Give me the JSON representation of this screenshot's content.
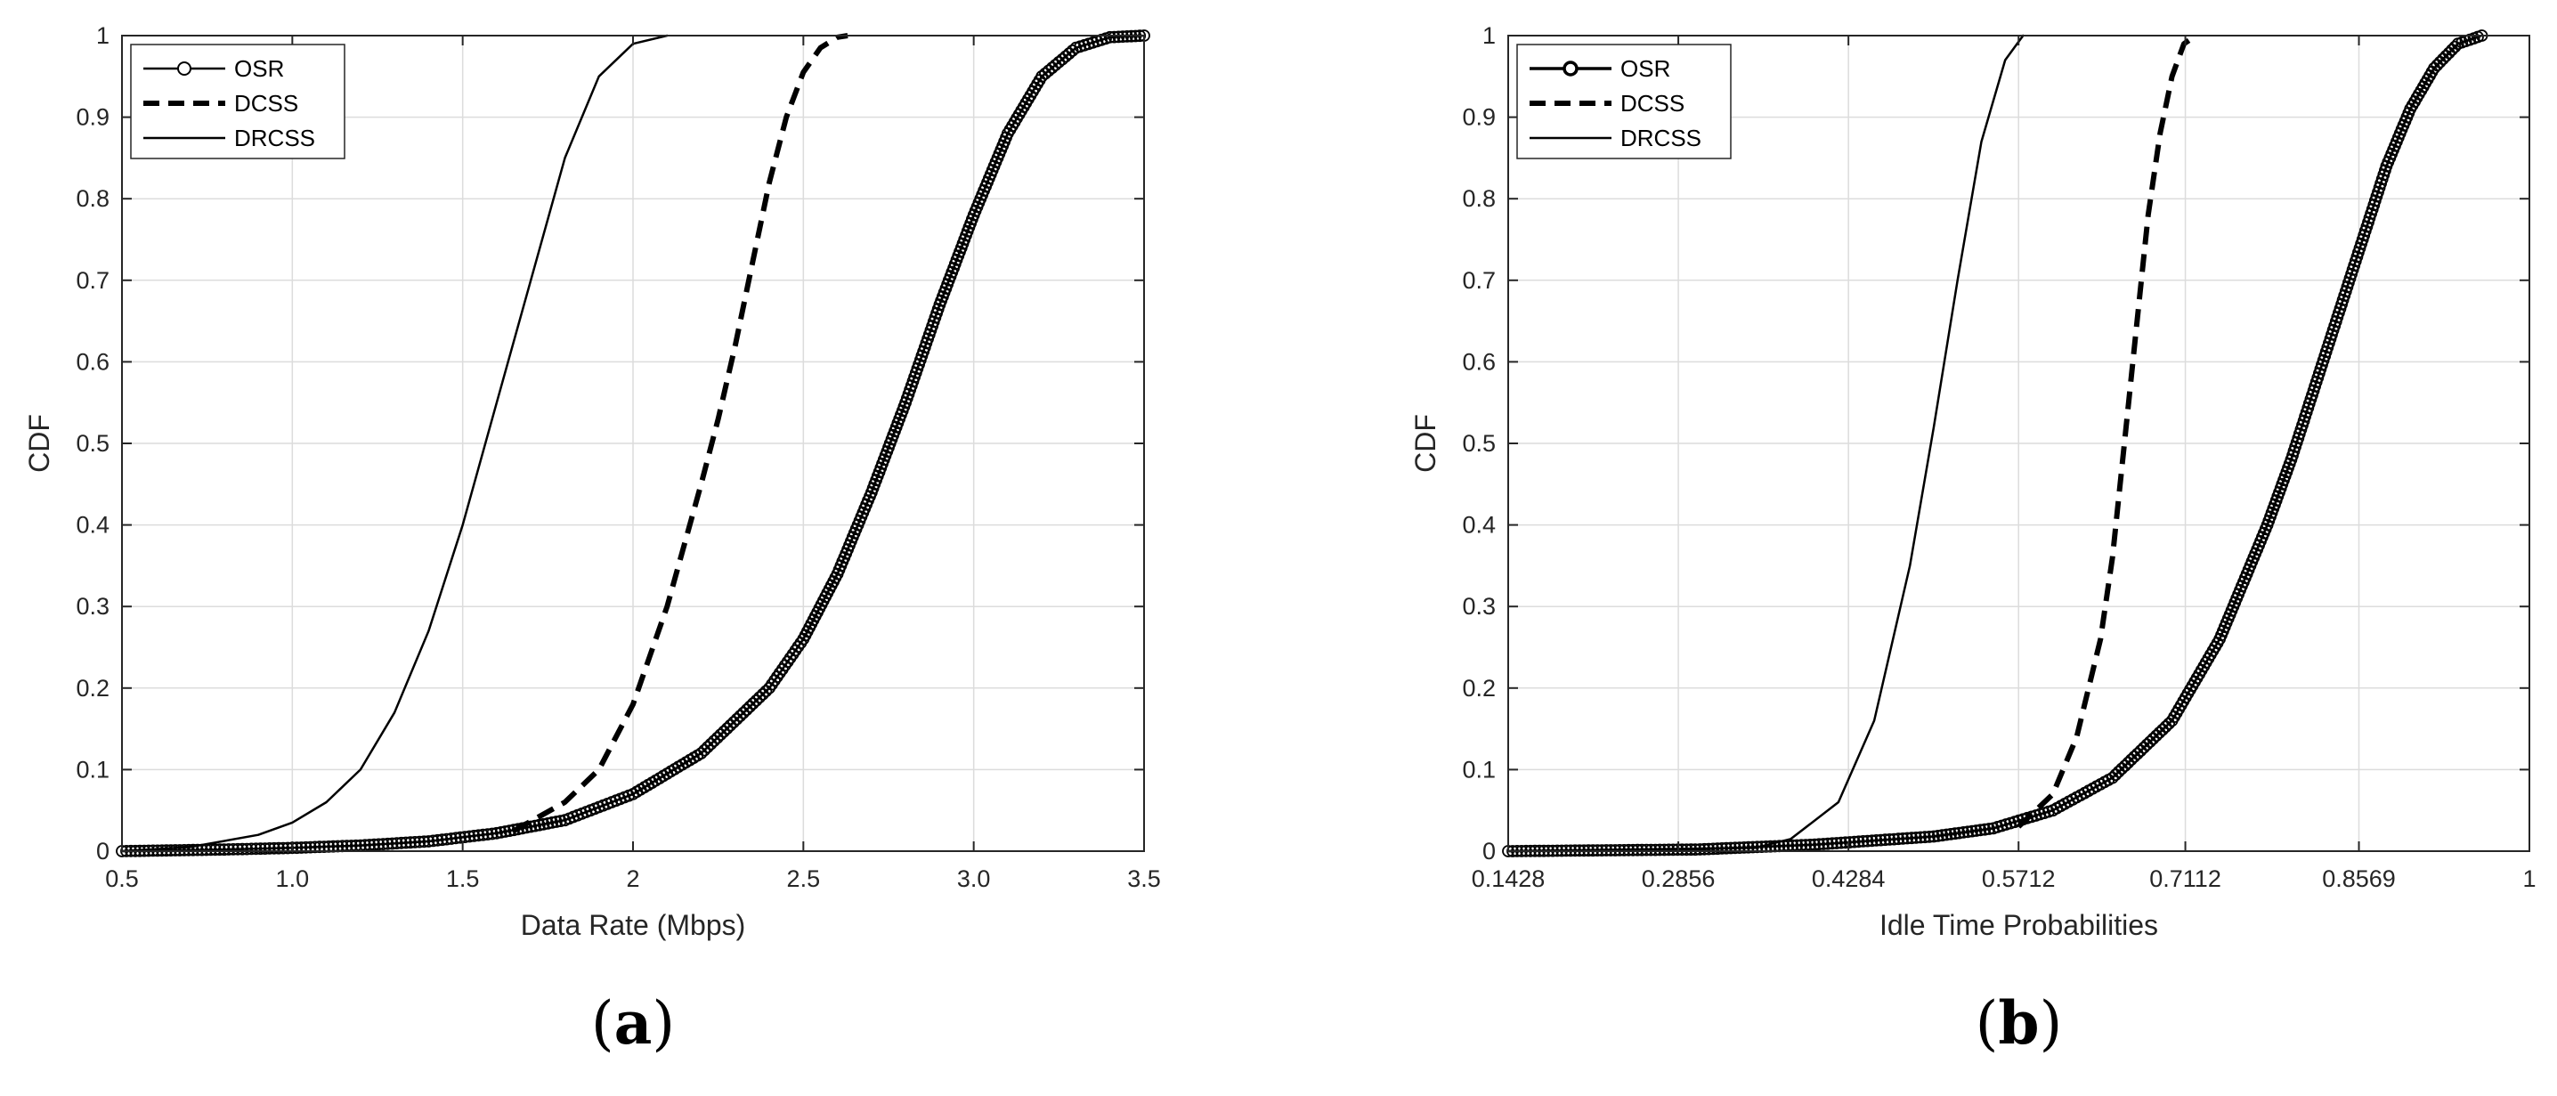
{
  "chart_data": [
    {
      "type": "line",
      "panel_caption": "a",
      "xlabel": "Data Rate (Mbps)",
      "ylabel": "CDF",
      "xlim": [
        0.5,
        3.5
      ],
      "ylim": [
        0,
        1
      ],
      "xticks": [
        0.5,
        1.0,
        1.5,
        2.0,
        2.5,
        3.0,
        3.5
      ],
      "xtick_labels": [
        "0.5",
        "1.0",
        "1.5",
        "2",
        "2.5",
        "3.0",
        "3.5"
      ],
      "yticks": [
        0,
        0.1,
        0.2,
        0.3,
        0.4,
        0.5,
        0.6,
        0.7,
        0.8,
        0.9,
        1
      ],
      "ytick_labels": [
        "0",
        "0.1",
        "0.2",
        "0.3",
        "0.4",
        "0.5",
        "0.6",
        "0.7",
        "0.8",
        "0.9",
        "1"
      ],
      "grid": true,
      "legend_position": "top-left",
      "series": [
        {
          "name": "OSR",
          "style": "solid-circle-markers",
          "x": [
            0.5,
            0.8,
            1.0,
            1.2,
            1.4,
            1.6,
            1.8,
            2.0,
            2.2,
            2.4,
            2.5,
            2.6,
            2.7,
            2.8,
            2.9,
            3.0,
            3.1,
            3.2,
            3.3,
            3.4,
            3.5
          ],
          "y": [
            0.0,
            0.002,
            0.004,
            0.007,
            0.012,
            0.022,
            0.038,
            0.07,
            0.12,
            0.2,
            0.26,
            0.34,
            0.44,
            0.55,
            0.67,
            0.78,
            0.88,
            0.95,
            0.985,
            0.998,
            1.0
          ]
        },
        {
          "name": "DCSS",
          "style": "dashed",
          "x": [
            1.65,
            1.8,
            1.9,
            2.0,
            2.1,
            2.2,
            2.25,
            2.3,
            2.35,
            2.4,
            2.45,
            2.5,
            2.55,
            2.6,
            2.63
          ],
          "y": [
            0.025,
            0.06,
            0.1,
            0.18,
            0.3,
            0.45,
            0.53,
            0.62,
            0.72,
            0.82,
            0.9,
            0.955,
            0.985,
            0.998,
            1.0
          ]
        },
        {
          "name": "DRCSS",
          "style": "solid",
          "x": [
            0.5,
            0.7,
            0.9,
            1.0,
            1.1,
            1.2,
            1.3,
            1.4,
            1.5,
            1.6,
            1.7,
            1.8,
            1.9,
            2.0,
            2.1
          ],
          "y": [
            0.0,
            0.005,
            0.02,
            0.035,
            0.06,
            0.1,
            0.17,
            0.27,
            0.4,
            0.55,
            0.7,
            0.85,
            0.95,
            0.99,
            1.0
          ]
        }
      ]
    },
    {
      "type": "line",
      "panel_caption": "b",
      "xlabel": "Idle Time Probabilities",
      "ylabel": "CDF",
      "xlim": [
        0.1428,
        1
      ],
      "ylim": [
        0,
        1
      ],
      "xticks": [
        0.1428,
        0.2856,
        0.4284,
        0.5712,
        0.7112,
        0.8569,
        1
      ],
      "xtick_labels": [
        "0.1428",
        "0.2856",
        "0.4284",
        "0.5712",
        "0.7112",
        "0.8569",
        "1"
      ],
      "yticks": [
        0,
        0.1,
        0.2,
        0.3,
        0.4,
        0.5,
        0.6,
        0.7,
        0.8,
        0.9,
        1
      ],
      "ytick_labels": [
        "0",
        "0.1",
        "0.2",
        "0.3",
        "0.4",
        "0.5",
        "0.6",
        "0.7",
        "0.8",
        "0.9",
        "1"
      ],
      "grid": true,
      "legend_position": "top-left",
      "series": [
        {
          "name": "OSR",
          "style": "solid-circle-markers",
          "x": [
            0.1428,
            0.3,
            0.4,
            0.5,
            0.55,
            0.6,
            0.65,
            0.7,
            0.74,
            0.78,
            0.8,
            0.82,
            0.84,
            0.86,
            0.88,
            0.9,
            0.92,
            0.94,
            0.96
          ],
          "y": [
            0.0,
            0.002,
            0.008,
            0.018,
            0.028,
            0.05,
            0.09,
            0.16,
            0.26,
            0.4,
            0.48,
            0.57,
            0.66,
            0.75,
            0.84,
            0.91,
            0.96,
            0.99,
            1.0
          ]
        },
        {
          "name": "DCSS",
          "style": "dashed",
          "x": [
            0.5712,
            0.6,
            0.62,
            0.64,
            0.65,
            0.66,
            0.67,
            0.68,
            0.69,
            0.7,
            0.71,
            0.72
          ],
          "y": [
            0.03,
            0.07,
            0.14,
            0.26,
            0.36,
            0.5,
            0.64,
            0.78,
            0.88,
            0.95,
            0.99,
            1.0
          ]
        },
        {
          "name": "DRCSS",
          "style": "solid",
          "x": [
            0.1428,
            0.35,
            0.38,
            0.42,
            0.45,
            0.48,
            0.5,
            0.52,
            0.54,
            0.56,
            0.575
          ],
          "y": [
            0.0,
            0.004,
            0.015,
            0.06,
            0.16,
            0.35,
            0.52,
            0.7,
            0.87,
            0.97,
            1.0
          ]
        }
      ]
    }
  ]
}
